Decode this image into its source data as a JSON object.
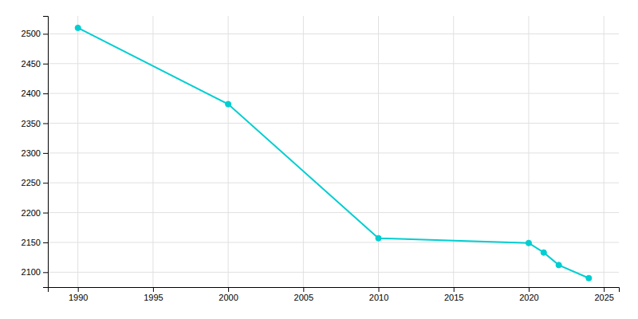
{
  "chart_data": {
    "type": "line",
    "x": [
      1990,
      2000,
      2010,
      2020,
      2021,
      2022,
      2024
    ],
    "values": [
      2510,
      2382,
      2157,
      2149,
      2133,
      2112,
      2090
    ],
    "color": "#00CED1",
    "marker": "circle",
    "xlim": [
      1988,
      2026
    ],
    "ylim": [
      2075,
      2530
    ],
    "xticks": [
      1990,
      1995,
      2000,
      2005,
      2010,
      2015,
      2020,
      2025
    ],
    "yticks": [
      2100,
      2150,
      2200,
      2250,
      2300,
      2350,
      2400,
      2450,
      2500
    ],
    "grid": true
  }
}
